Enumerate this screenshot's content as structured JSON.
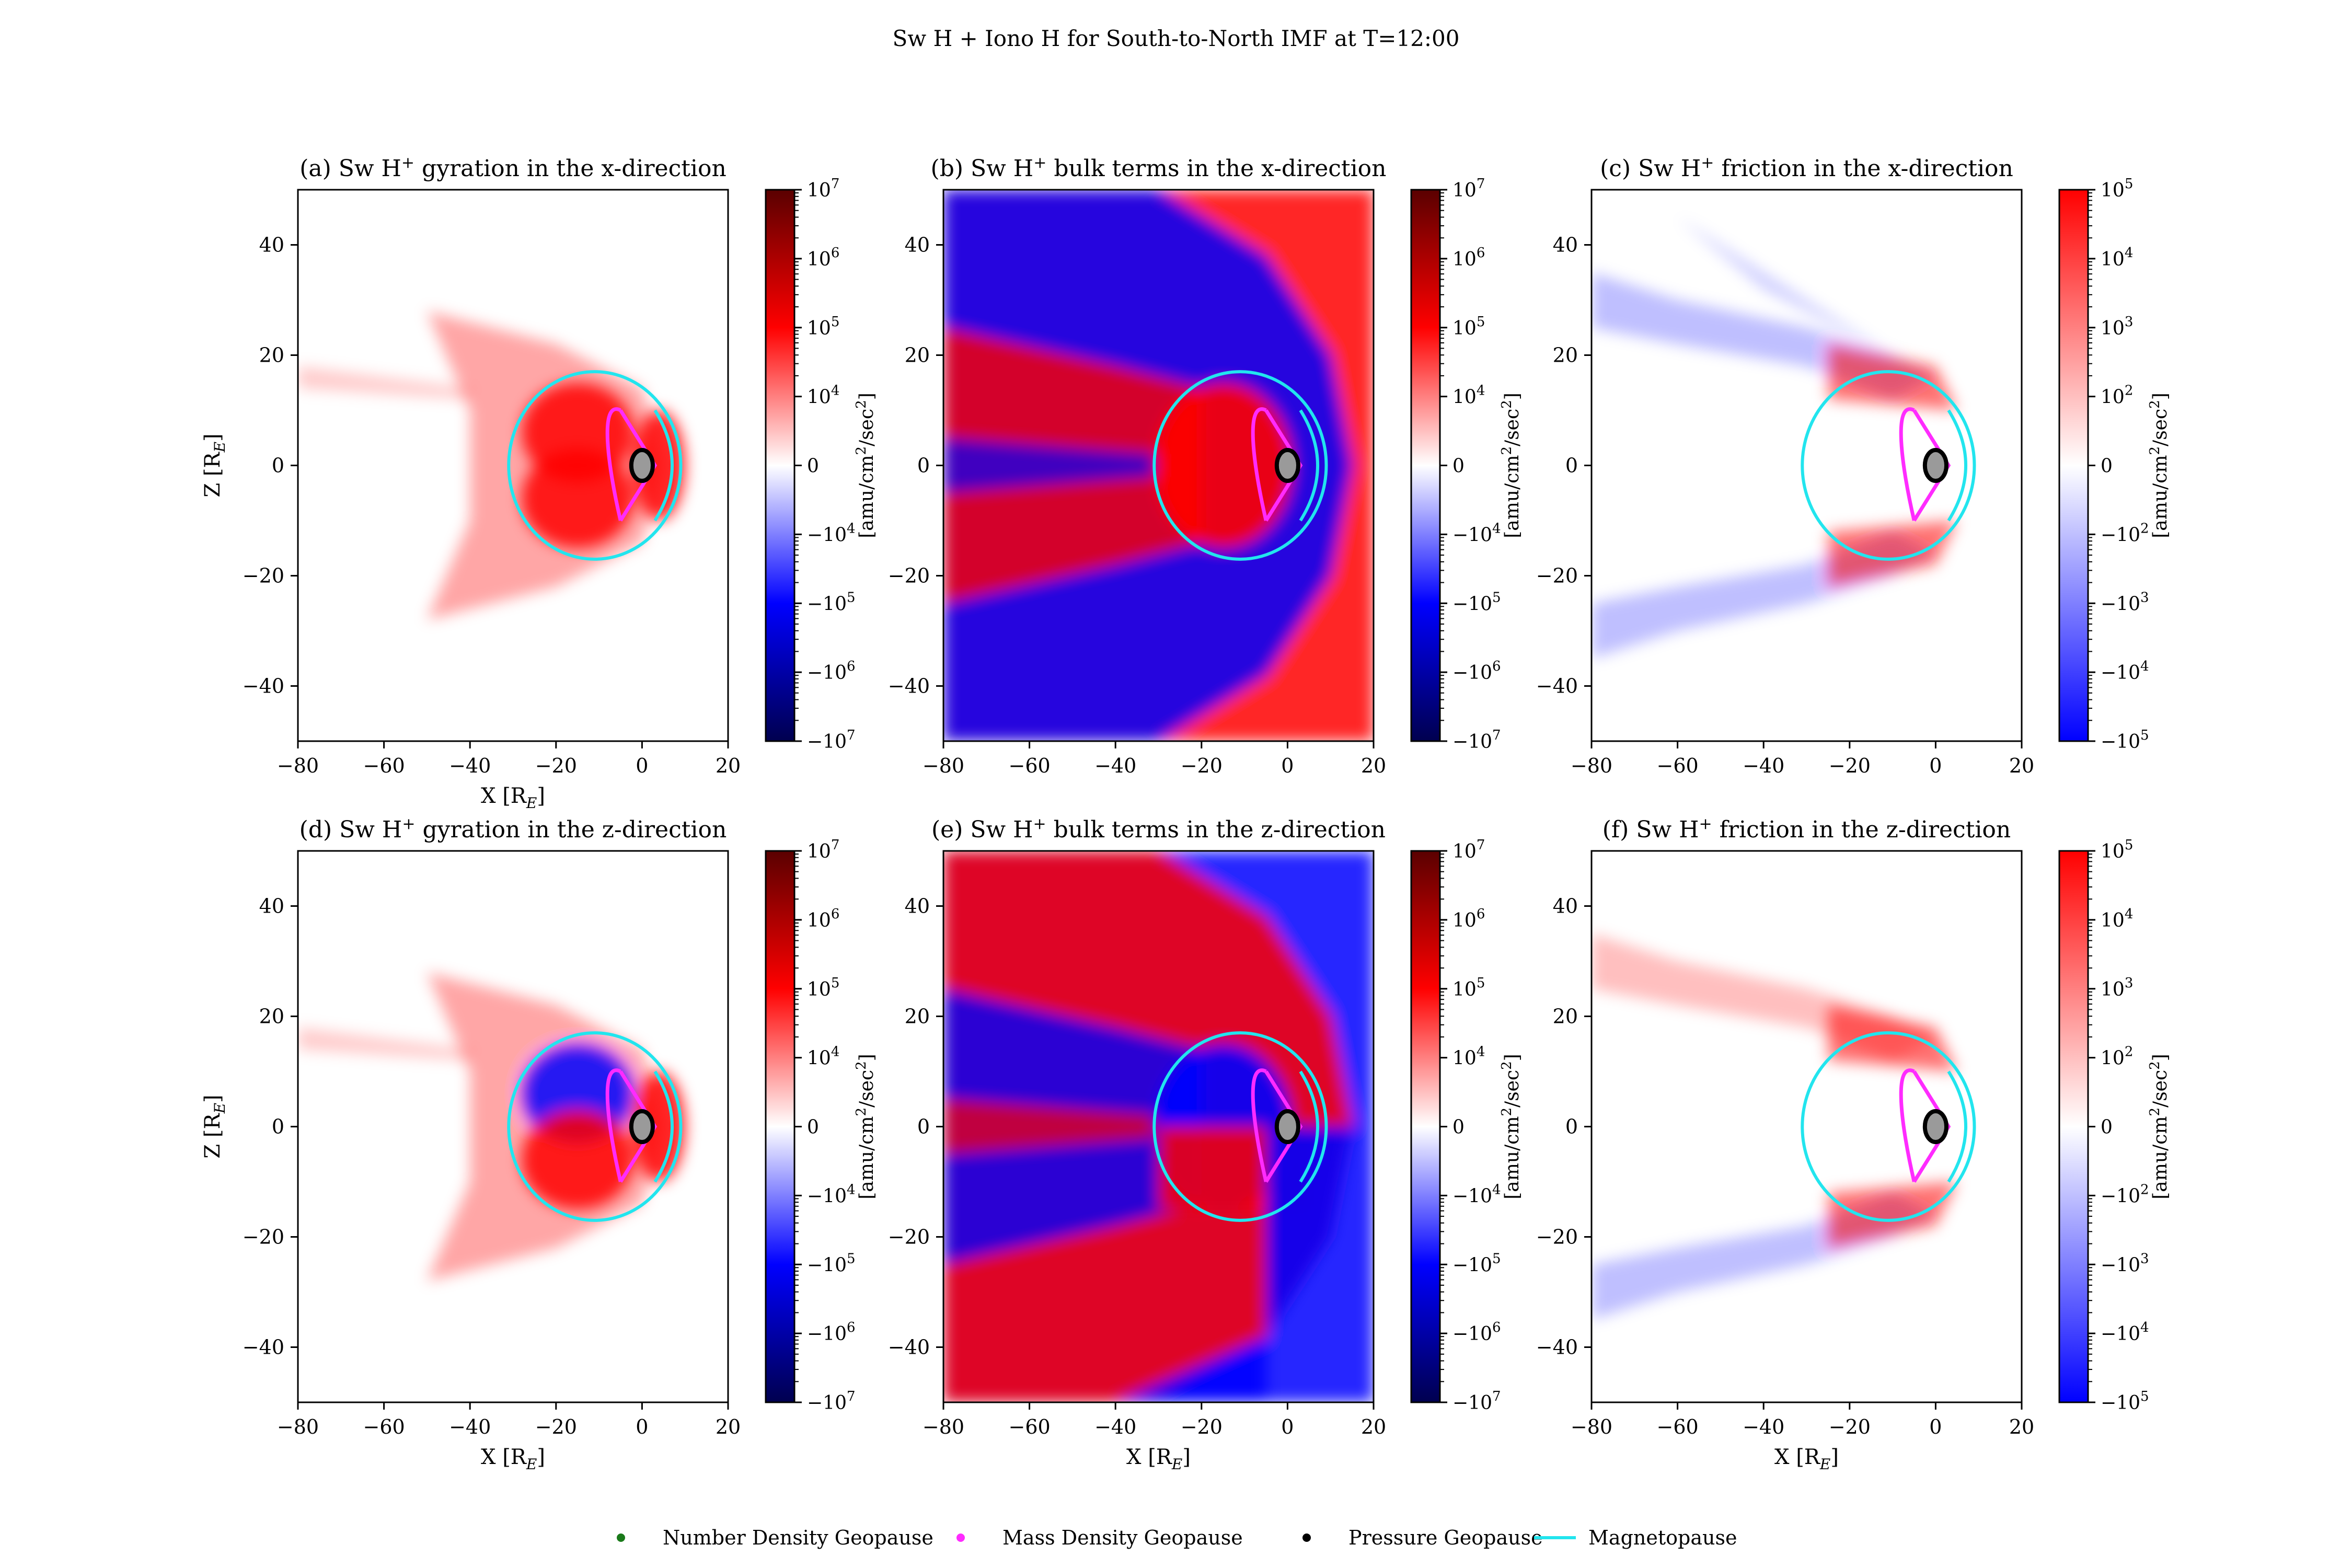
{
  "figure": {
    "title": "Sw H + Iono H for South-to-North IMF at T=12:00"
  },
  "legend": [
    {
      "label": "Number Density Geopause",
      "marker": "dot",
      "color": "#1a7a1a"
    },
    {
      "label": "Mass Density Geopause",
      "marker": "dot",
      "color": "#ff2bff"
    },
    {
      "label": "Pressure Geopause",
      "marker": "dot",
      "color": "#000000"
    },
    {
      "label": "Magnetopause",
      "marker": "line",
      "color": "#22e5ee"
    }
  ],
  "colors": {
    "positive": "#ff0000",
    "negative": "#0000ff",
    "dark_positive": "#5a0000",
    "dark_negative": "#00004f",
    "geopause_mass": "#ff2bff",
    "magnetopause": "#22e5ee",
    "earth": "#9a9a9a"
  },
  "chart_data": [
    {
      "id": "a",
      "type": "heatmap",
      "title": "(a) Sw H",
      "title_sup": "+",
      "title_rest": " gyration in the x-direction",
      "xlabel": "X [R",
      "xlabel_sub": "E",
      "xlabel_end": "]",
      "ylabel": "Z [R",
      "ylabel_sub": "E",
      "ylabel_end": "]",
      "xlim": [
        -80,
        20
      ],
      "ylim": [
        -50,
        50
      ],
      "xticks": [
        "−80",
        "−60",
        "−40",
        "−20",
        "0",
        "20"
      ],
      "yticks": [
        "−40",
        "−20",
        "0",
        "20",
        "40"
      ],
      "colorbar": {
        "label": "[amu/cm",
        "label_sup": "2",
        "label_mid": "/sec",
        "label_sup2": "2",
        "label_end": "]",
        "scale": "symlog",
        "max_exp": 7,
        "ticks": [
          {
            "b": "10",
            "e": "7"
          },
          {
            "b": "10",
            "e": "6"
          },
          {
            "b": "10",
            "e": "5"
          },
          {
            "b": "10",
            "e": "4"
          },
          {
            "b": "0",
            "e": ""
          },
          {
            "b": "−10",
            "e": "4"
          },
          {
            "b": "−10",
            "e": "5"
          },
          {
            "b": "−10",
            "e": "6"
          },
          {
            "b": "−10",
            "e": "7"
          }
        ]
      }
    },
    {
      "id": "b",
      "type": "heatmap",
      "title": "(b) Sw H",
      "title_sup": "+",
      "title_rest": " bulk terms in the x-direction",
      "xlabel": "",
      "ylabel": "",
      "xlim": [
        -80,
        20
      ],
      "ylim": [
        -50,
        50
      ],
      "xticks": [
        "−80",
        "−60",
        "−40",
        "−20",
        "0",
        "20"
      ],
      "yticks": [
        "−40",
        "−20",
        "0",
        "20",
        "40"
      ],
      "colorbar": {
        "label": "[amu/cm",
        "label_sup": "2",
        "label_mid": "/sec",
        "label_sup2": "2",
        "label_end": "]",
        "scale": "symlog",
        "max_exp": 7,
        "ticks": [
          {
            "b": "10",
            "e": "7"
          },
          {
            "b": "10",
            "e": "6"
          },
          {
            "b": "10",
            "e": "5"
          },
          {
            "b": "10",
            "e": "4"
          },
          {
            "b": "0",
            "e": ""
          },
          {
            "b": "−10",
            "e": "4"
          },
          {
            "b": "−10",
            "e": "5"
          },
          {
            "b": "−10",
            "e": "6"
          },
          {
            "b": "−10",
            "e": "7"
          }
        ]
      }
    },
    {
      "id": "c",
      "type": "heatmap",
      "title": "(c) Sw H",
      "title_sup": "+",
      "title_rest": " friction in the x-direction",
      "xlabel": "",
      "ylabel": "",
      "xlim": [
        -80,
        20
      ],
      "ylim": [
        -50,
        50
      ],
      "xticks": [
        "−80",
        "−60",
        "−40",
        "−20",
        "0",
        "20"
      ],
      "yticks": [
        "−40",
        "−20",
        "0",
        "20",
        "40"
      ],
      "colorbar": {
        "label": "[amu/cm",
        "label_sup": "2",
        "label_mid": "/sec",
        "label_sup2": "2",
        "label_end": "]",
        "scale": "symlog",
        "max_exp": 5,
        "ticks": [
          {
            "b": "10",
            "e": "5"
          },
          {
            "b": "10",
            "e": "4"
          },
          {
            "b": "10",
            "e": "3"
          },
          {
            "b": "10",
            "e": "2"
          },
          {
            "b": "0",
            "e": ""
          },
          {
            "b": "−10",
            "e": "2"
          },
          {
            "b": "−10",
            "e": "3"
          },
          {
            "b": "−10",
            "e": "4"
          },
          {
            "b": "−10",
            "e": "5"
          }
        ]
      }
    },
    {
      "id": "d",
      "type": "heatmap",
      "title": "(d) Sw H",
      "title_sup": "+",
      "title_rest": " gyration in the z-direction",
      "xlabel": "X [R",
      "xlabel_sub": "E",
      "xlabel_end": "]",
      "ylabel": "Z [R",
      "ylabel_sub": "E",
      "ylabel_end": "]",
      "xlim": [
        -80,
        20
      ],
      "ylim": [
        -50,
        50
      ],
      "xticks": [
        "−80",
        "−60",
        "−40",
        "−20",
        "0",
        "20"
      ],
      "yticks": [
        "−40",
        "−20",
        "0",
        "20",
        "40"
      ],
      "colorbar": {
        "label": "[amu/cm",
        "label_sup": "2",
        "label_mid": "/sec",
        "label_sup2": "2",
        "label_end": "]",
        "scale": "symlog",
        "max_exp": 7,
        "ticks": [
          {
            "b": "10",
            "e": "7"
          },
          {
            "b": "10",
            "e": "6"
          },
          {
            "b": "10",
            "e": "5"
          },
          {
            "b": "10",
            "e": "4"
          },
          {
            "b": "0",
            "e": ""
          },
          {
            "b": "−10",
            "e": "4"
          },
          {
            "b": "−10",
            "e": "5"
          },
          {
            "b": "−10",
            "e": "6"
          },
          {
            "b": "−10",
            "e": "7"
          }
        ]
      }
    },
    {
      "id": "e",
      "type": "heatmap",
      "title": "(e) Sw H",
      "title_sup": "+",
      "title_rest": " bulk terms in the z-direction",
      "xlabel": "X [R",
      "xlabel_sub": "E",
      "xlabel_end": "]",
      "ylabel": "",
      "xlim": [
        -80,
        20
      ],
      "ylim": [
        -50,
        50
      ],
      "xticks": [
        "−80",
        "−60",
        "−40",
        "−20",
        "0",
        "20"
      ],
      "yticks": [
        "−40",
        "−20",
        "0",
        "20",
        "40"
      ],
      "colorbar": {
        "label": "[amu/cm",
        "label_sup": "2",
        "label_mid": "/sec",
        "label_sup2": "2",
        "label_end": "]",
        "scale": "symlog",
        "max_exp": 7,
        "ticks": [
          {
            "b": "10",
            "e": "7"
          },
          {
            "b": "10",
            "e": "6"
          },
          {
            "b": "10",
            "e": "5"
          },
          {
            "b": "10",
            "e": "4"
          },
          {
            "b": "0",
            "e": ""
          },
          {
            "b": "−10",
            "e": "4"
          },
          {
            "b": "−10",
            "e": "5"
          },
          {
            "b": "−10",
            "e": "6"
          },
          {
            "b": "−10",
            "e": "7"
          }
        ]
      }
    },
    {
      "id": "f",
      "type": "heatmap",
      "title": "(f) Sw H",
      "title_sup": "+",
      "title_rest": " friction in the z-direction",
      "xlabel": "X [R",
      "xlabel_sub": "E",
      "xlabel_end": "]",
      "ylabel": "",
      "xlim": [
        -80,
        20
      ],
      "ylim": [
        -50,
        50
      ],
      "xticks": [
        "−80",
        "−60",
        "−40",
        "−20",
        "0",
        "20"
      ],
      "yticks": [
        "−40",
        "−20",
        "0",
        "20",
        "40"
      ],
      "colorbar": {
        "label": "[amu/cm",
        "label_sup": "2",
        "label_mid": "/sec",
        "label_sup2": "2",
        "label_end": "]",
        "scale": "symlog",
        "max_exp": 5,
        "ticks": [
          {
            "b": "10",
            "e": "5"
          },
          {
            "b": "10",
            "e": "4"
          },
          {
            "b": "10",
            "e": "3"
          },
          {
            "b": "10",
            "e": "2"
          },
          {
            "b": "0",
            "e": ""
          },
          {
            "b": "−10",
            "e": "2"
          },
          {
            "b": "−10",
            "e": "3"
          },
          {
            "b": "−10",
            "e": "4"
          },
          {
            "b": "−10",
            "e": "5"
          }
        ]
      }
    }
  ]
}
